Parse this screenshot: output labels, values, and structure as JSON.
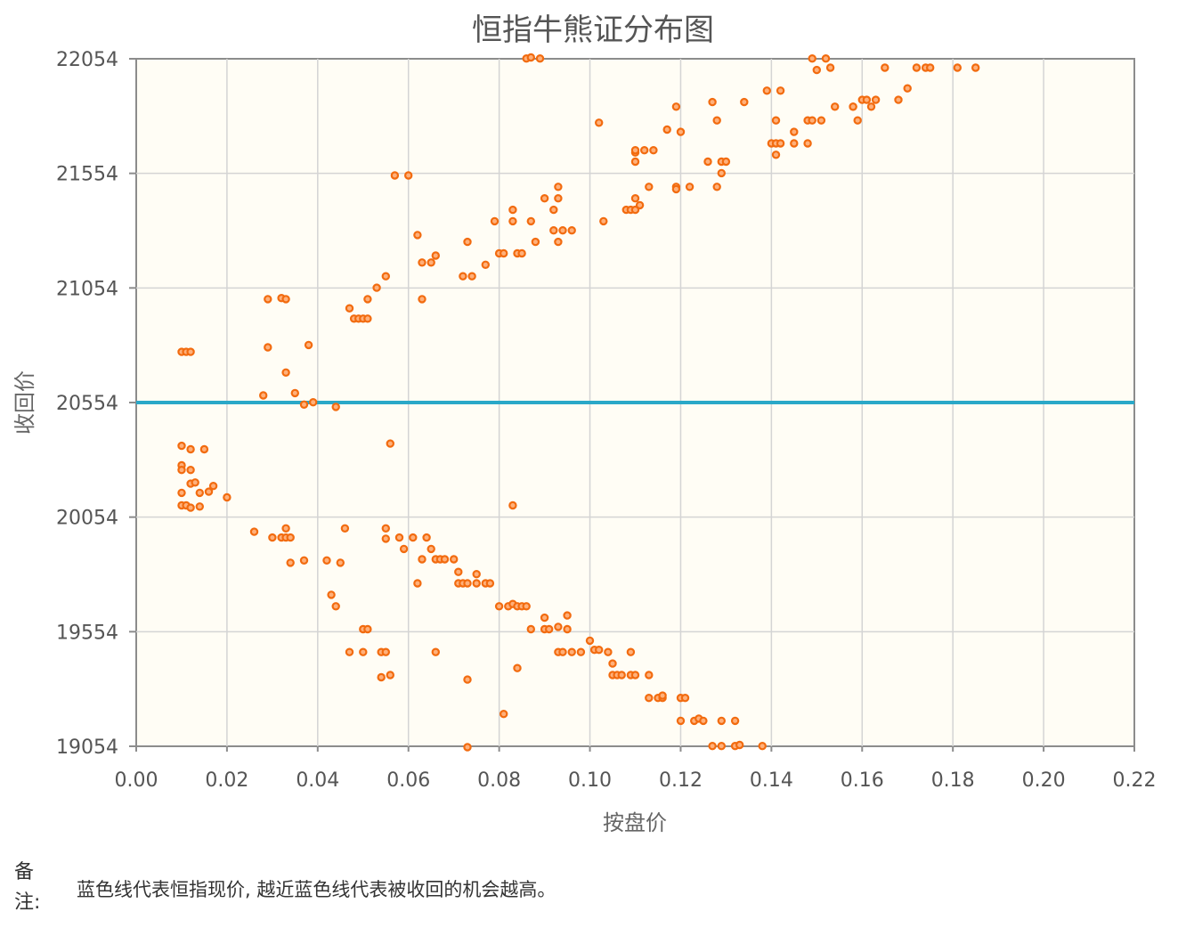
{
  "chart_data": {
    "type": "scatter",
    "title": "恒指牛熊证分布图",
    "xlabel": "按盘价",
    "ylabel": "收回价",
    "xlim": [
      0,
      0.22
    ],
    "ylim": [
      19054,
      22054
    ],
    "x_ticks": [
      "0.00",
      "0.02",
      "0.04",
      "0.06",
      "0.08",
      "0.10",
      "0.12",
      "0.14",
      "0.16",
      "0.18",
      "0.20",
      "0.22"
    ],
    "y_ticks": [
      "22054",
      "21554",
      "21054",
      "20554",
      "20054",
      "19554",
      "19054"
    ],
    "grid": true,
    "reference_line": {
      "y": 20554
    },
    "colors": {
      "points": "#f26b0f",
      "reference_line": "#2aa8c8",
      "plot_background": "#fffdf5",
      "grid": "#d4d4d4"
    },
    "series": [
      {
        "points": [
          [
            0.01,
            20775
          ],
          [
            0.011,
            20775
          ],
          [
            0.012,
            20775
          ],
          [
            0.01,
            20365
          ],
          [
            0.012,
            20350
          ],
          [
            0.015,
            20350
          ],
          [
            0.01,
            20280
          ],
          [
            0.01,
            20260
          ],
          [
            0.012,
            20260
          ],
          [
            0.012,
            20200
          ],
          [
            0.013,
            20205
          ],
          [
            0.017,
            20190
          ],
          [
            0.01,
            20160
          ],
          [
            0.014,
            20160
          ],
          [
            0.016,
            20165
          ],
          [
            0.02,
            20140
          ],
          [
            0.01,
            20105
          ],
          [
            0.011,
            20105
          ],
          [
            0.012,
            20095
          ],
          [
            0.014,
            20100
          ],
          [
            0.026,
            19990
          ],
          [
            0.03,
            19965
          ],
          [
            0.032,
            19965
          ],
          [
            0.033,
            19965
          ],
          [
            0.034,
            19965
          ],
          [
            0.033,
            20005
          ],
          [
            0.034,
            19855
          ],
          [
            0.037,
            19865
          ],
          [
            0.029,
            21005
          ],
          [
            0.032,
            21010
          ],
          [
            0.033,
            21005
          ],
          [
            0.029,
            20795
          ],
          [
            0.038,
            20805
          ],
          [
            0.033,
            20685
          ],
          [
            0.028,
            20585
          ],
          [
            0.035,
            20595
          ],
          [
            0.037,
            20545
          ],
          [
            0.039,
            20555
          ],
          [
            0.042,
            19865
          ],
          [
            0.045,
            19855
          ],
          [
            0.046,
            20005
          ],
          [
            0.044,
            20535
          ],
          [
            0.043,
            19715
          ],
          [
            0.044,
            19665
          ],
          [
            0.047,
            20965
          ],
          [
            0.048,
            20920
          ],
          [
            0.049,
            20920
          ],
          [
            0.05,
            20920
          ],
          [
            0.051,
            20920
          ],
          [
            0.051,
            21005
          ],
          [
            0.053,
            21055
          ],
          [
            0.055,
            21105
          ],
          [
            0.047,
            19465
          ],
          [
            0.05,
            19465
          ],
          [
            0.05,
            19565
          ],
          [
            0.051,
            19565
          ],
          [
            0.054,
            19465
          ],
          [
            0.055,
            19465
          ],
          [
            0.054,
            19355
          ],
          [
            0.056,
            19365
          ],
          [
            0.056,
            20375
          ],
          [
            0.055,
            20005
          ],
          [
            0.055,
            19960
          ],
          [
            0.057,
            21545
          ],
          [
            0.06,
            21545
          ],
          [
            0.058,
            19965
          ],
          [
            0.059,
            19915
          ],
          [
            0.062,
            21285
          ],
          [
            0.063,
            21165
          ],
          [
            0.065,
            21165
          ],
          [
            0.066,
            21195
          ],
          [
            0.063,
            21005
          ],
          [
            0.061,
            19965
          ],
          [
            0.064,
            19965
          ],
          [
            0.063,
            19870
          ],
          [
            0.065,
            19915
          ],
          [
            0.066,
            19870
          ],
          [
            0.067,
            19870
          ],
          [
            0.068,
            19870
          ],
          [
            0.07,
            19870
          ],
          [
            0.062,
            19765
          ],
          [
            0.066,
            19465
          ],
          [
            0.071,
            19765
          ],
          [
            0.071,
            19815
          ],
          [
            0.072,
            19765
          ],
          [
            0.073,
            19765
          ],
          [
            0.073,
            21255
          ],
          [
            0.072,
            21105
          ],
          [
            0.074,
            21105
          ],
          [
            0.073,
            19345
          ],
          [
            0.073,
            19050
          ],
          [
            0.075,
            19805
          ],
          [
            0.075,
            19765
          ],
          [
            0.077,
            19765
          ],
          [
            0.078,
            19765
          ],
          [
            0.077,
            21155
          ],
          [
            0.079,
            21345
          ],
          [
            0.08,
            21205
          ],
          [
            0.081,
            21205
          ],
          [
            0.083,
            21345
          ],
          [
            0.083,
            21395
          ],
          [
            0.084,
            21205
          ],
          [
            0.085,
            21205
          ],
          [
            0.087,
            21345
          ],
          [
            0.088,
            21255
          ],
          [
            0.08,
            19665
          ],
          [
            0.082,
            19665
          ],
          [
            0.083,
            19675
          ],
          [
            0.084,
            19665
          ],
          [
            0.085,
            19665
          ],
          [
            0.086,
            19665
          ],
          [
            0.083,
            20105
          ],
          [
            0.084,
            19395
          ],
          [
            0.081,
            19195
          ],
          [
            0.087,
            19565
          ],
          [
            0.086,
            22055
          ],
          [
            0.087,
            22060
          ],
          [
            0.089,
            22055
          ],
          [
            0.09,
            21445
          ],
          [
            0.092,
            21395
          ],
          [
            0.093,
            21445
          ],
          [
            0.093,
            21495
          ],
          [
            0.092,
            21305
          ],
          [
            0.093,
            21255
          ],
          [
            0.094,
            21305
          ],
          [
            0.096,
            21305
          ],
          [
            0.09,
            19615
          ],
          [
            0.09,
            19565
          ],
          [
            0.091,
            19565
          ],
          [
            0.093,
            19575
          ],
          [
            0.095,
            19565
          ],
          [
            0.095,
            19625
          ],
          [
            0.093,
            19465
          ],
          [
            0.094,
            19465
          ],
          [
            0.096,
            19465
          ],
          [
            0.098,
            19465
          ],
          [
            0.102,
            21775
          ],
          [
            0.103,
            21345
          ],
          [
            0.1,
            19515
          ],
          [
            0.101,
            19475
          ],
          [
            0.102,
            19475
          ],
          [
            0.104,
            19465
          ],
          [
            0.105,
            19415
          ],
          [
            0.105,
            19365
          ],
          [
            0.106,
            19365
          ],
          [
            0.107,
            19365
          ],
          [
            0.109,
            19365
          ],
          [
            0.11,
            19365
          ],
          [
            0.108,
            21395
          ],
          [
            0.109,
            21395
          ],
          [
            0.11,
            21395
          ],
          [
            0.11,
            21445
          ],
          [
            0.111,
            21415
          ],
          [
            0.109,
            19465
          ],
          [
            0.11,
            21605
          ],
          [
            0.11,
            21645
          ],
          [
            0.11,
            21655
          ],
          [
            0.112,
            21655
          ],
          [
            0.114,
            21655
          ],
          [
            0.113,
            21495
          ],
          [
            0.113,
            19365
          ],
          [
            0.113,
            19265
          ],
          [
            0.115,
            19265
          ],
          [
            0.116,
            19265
          ],
          [
            0.116,
            19275
          ],
          [
            0.117,
            21745
          ],
          [
            0.119,
            21845
          ],
          [
            0.119,
            21495
          ],
          [
            0.119,
            21485
          ],
          [
            0.12,
            21735
          ],
          [
            0.122,
            21495
          ],
          [
            0.12,
            19265
          ],
          [
            0.121,
            19265
          ],
          [
            0.12,
            19165
          ],
          [
            0.123,
            19165
          ],
          [
            0.124,
            19175
          ],
          [
            0.125,
            19165
          ],
          [
            0.126,
            21605
          ],
          [
            0.127,
            21865
          ],
          [
            0.128,
            21785
          ],
          [
            0.128,
            21495
          ],
          [
            0.129,
            21555
          ],
          [
            0.129,
            21605
          ],
          [
            0.13,
            21605
          ],
          [
            0.127,
            19055
          ],
          [
            0.129,
            19055
          ],
          [
            0.129,
            19165
          ],
          [
            0.132,
            19165
          ],
          [
            0.132,
            19055
          ],
          [
            0.133,
            19060
          ],
          [
            0.134,
            21865
          ],
          [
            0.138,
            19055
          ],
          [
            0.139,
            21915
          ],
          [
            0.14,
            21685
          ],
          [
            0.141,
            21635
          ],
          [
            0.141,
            21685
          ],
          [
            0.141,
            21785
          ],
          [
            0.142,
            21685
          ],
          [
            0.142,
            21915
          ],
          [
            0.145,
            21685
          ],
          [
            0.145,
            21735
          ],
          [
            0.148,
            21685
          ],
          [
            0.148,
            21785
          ],
          [
            0.149,
            21785
          ],
          [
            0.151,
            21785
          ],
          [
            0.149,
            22055
          ],
          [
            0.15,
            22005
          ],
          [
            0.152,
            22055
          ],
          [
            0.153,
            22015
          ],
          [
            0.154,
            21845
          ],
          [
            0.158,
            21845
          ],
          [
            0.158,
            21845
          ],
          [
            0.159,
            21785
          ],
          [
            0.16,
            21875
          ],
          [
            0.161,
            21875
          ],
          [
            0.162,
            21845
          ],
          [
            0.163,
            21875
          ],
          [
            0.165,
            22015
          ],
          [
            0.168,
            21875
          ],
          [
            0.17,
            21925
          ],
          [
            0.172,
            22015
          ],
          [
            0.174,
            22015
          ],
          [
            0.175,
            22015
          ],
          [
            0.181,
            22015
          ],
          [
            0.185,
            22015
          ]
        ]
      }
    ]
  },
  "note": {
    "label": "备注:",
    "text": "蓝色线代表恒指现价, 越近蓝色线代表被收回的机会越高。"
  }
}
